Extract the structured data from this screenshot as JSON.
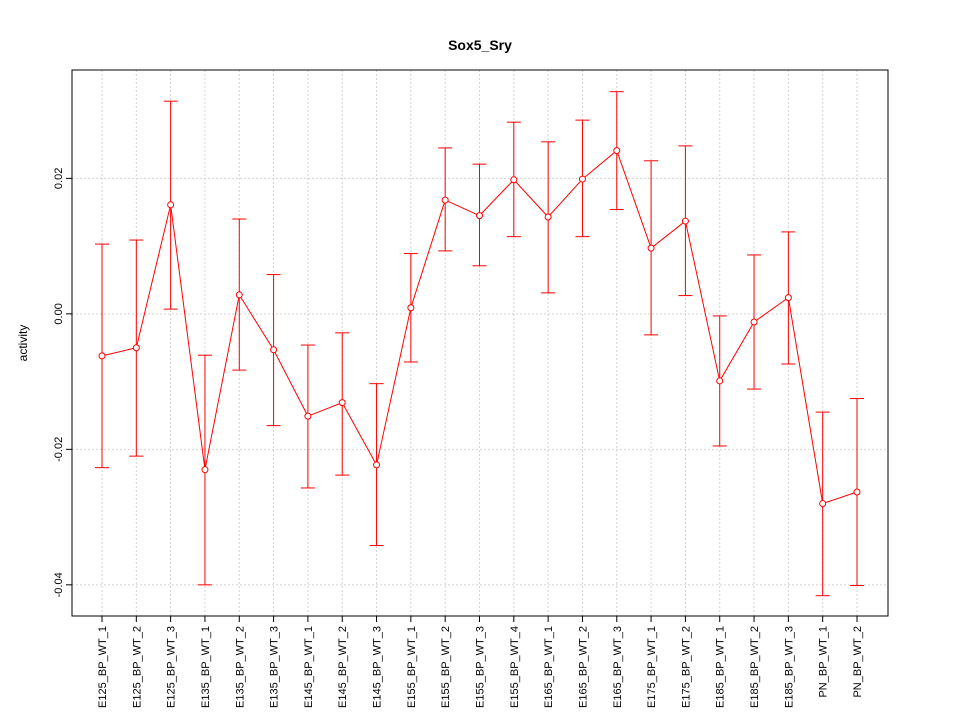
{
  "chart_data": {
    "type": "line",
    "title": "Sox5_Sry",
    "xlabel": "",
    "ylabel": "activity",
    "ylim": [
      -0.0446,
      0.036
    ],
    "yticks": [
      -0.04,
      -0.02,
      0.0,
      0.02
    ],
    "ytick_labels": [
      "-0.04",
      "-0.02",
      "0.00",
      "0.02"
    ],
    "grid": true,
    "series_color": "#ff0000",
    "categories": [
      "E125_BP_WT_1",
      "E125_BP_WT_2",
      "E125_BP_WT_3",
      "E135_BP_WT_1",
      "E135_BP_WT_2",
      "E135_BP_WT_3",
      "E145_BP_WT_1",
      "E145_BP_WT_2",
      "E145_BP_WT_3",
      "E155_BP_WT_1",
      "E155_BP_WT_2",
      "E155_BP_WT_3",
      "E155_BP_WT_4",
      "E165_BP_WT_1",
      "E165_BP_WT_2",
      "E165_BP_WT_3",
      "E175_BP_WT_1",
      "E175_BP_WT_2",
      "E185_BP_WT_1",
      "E185_BP_WT_2",
      "E185_BP_WT_3",
      "PN_BP_WT_1",
      "PN_BP_WT_2"
    ],
    "values": [
      -0.0062,
      -0.005,
      0.0161,
      -0.023,
      0.0028,
      -0.0053,
      -0.0151,
      -0.0131,
      -0.0223,
      0.0009,
      0.0168,
      0.0145,
      0.0198,
      0.0143,
      0.0199,
      0.0241,
      0.0097,
      0.0137,
      -0.0099,
      -0.0012,
      0.0024,
      -0.028,
      -0.0263
    ],
    "upper": [
      0.0103,
      0.0109,
      0.0314,
      -0.0061,
      0.014,
      0.0058,
      -0.0046,
      -0.0028,
      -0.0103,
      0.0089,
      0.0245,
      0.0221,
      0.0283,
      0.0254,
      0.0286,
      0.0328,
      0.0226,
      0.0248,
      -0.0003,
      0.0087,
      0.0121,
      -0.0145,
      -0.0125
    ],
    "lower": [
      -0.0227,
      -0.021,
      0.0007,
      -0.04,
      -0.0083,
      -0.0165,
      -0.0257,
      -0.0238,
      -0.0342,
      -0.0071,
      0.0093,
      0.0071,
      0.0114,
      0.0031,
      0.0114,
      0.0154,
      -0.0031,
      0.0027,
      -0.0195,
      -0.0111,
      -0.0074,
      -0.0416,
      -0.0401
    ]
  }
}
